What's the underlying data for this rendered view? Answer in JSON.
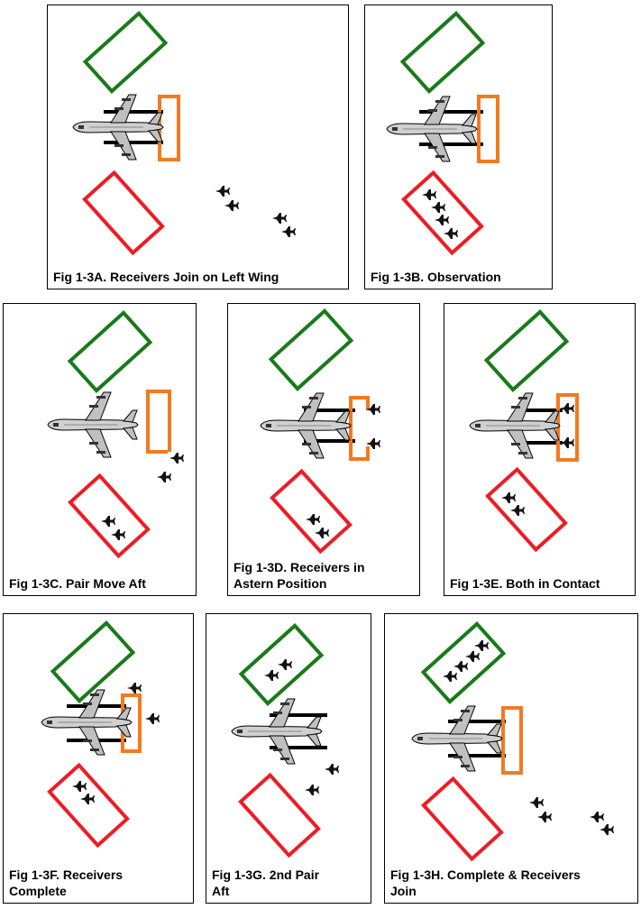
{
  "colors": {
    "green": "#1a7a1a",
    "red": "#ee1c24",
    "orange": "#f47920",
    "black": "#000000",
    "aircraft": "#c8c8c8"
  },
  "icons": {
    "tanker": "tanker-aircraft-icon",
    "fighter": "fighter-jet-icon"
  },
  "panels": [
    {
      "id": "a",
      "caption": "Fig 1-3A.  Receivers Join on Left Wing"
    },
    {
      "id": "b",
      "caption": "Fig 1-3B.  Observation"
    },
    {
      "id": "c",
      "caption": "Fig 1-3C.  Pair Move Aft"
    },
    {
      "id": "d",
      "caption_lines": [
        "Fig 1-3D.  Receivers in",
        "Astern Position"
      ]
    },
    {
      "id": "e",
      "caption": "Fig 1-3E.  Both in Contact"
    },
    {
      "id": "f",
      "caption_lines": [
        "Fig 1-3F.  Receivers",
        "Complete"
      ]
    },
    {
      "id": "g",
      "caption_lines": [
        "Fig 1-3G.  2nd Pair",
        "Aft"
      ]
    },
    {
      "id": "h",
      "caption_lines": [
        "Fig 1-3H.  Complete & Receivers",
        "Join"
      ]
    }
  ]
}
